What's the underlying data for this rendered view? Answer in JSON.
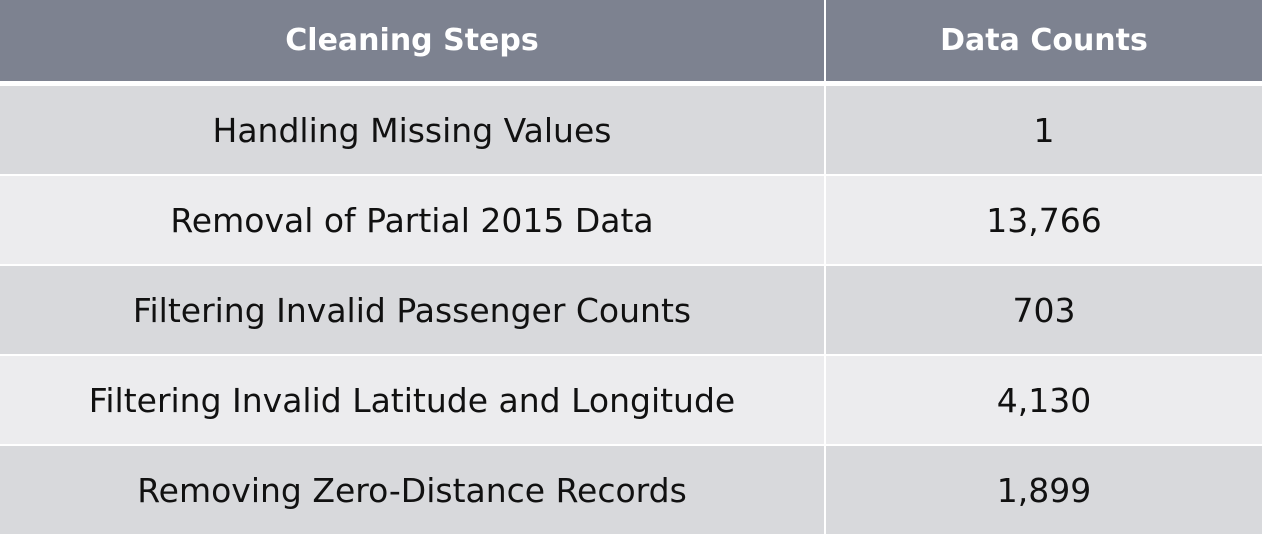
{
  "table": {
    "headers": {
      "step": "Cleaning Steps",
      "count": "Data Counts"
    },
    "rows": [
      {
        "step": "Handling Missing Values",
        "count": "1"
      },
      {
        "step": "Removal of Partial 2015 Data",
        "count": "13,766"
      },
      {
        "step": "Filtering Invalid Passenger Counts",
        "count": "703"
      },
      {
        "step": "Filtering Invalid Latitude and Longitude",
        "count": "4,130"
      },
      {
        "step": "Removing Zero-Distance Records",
        "count": "1,899"
      }
    ]
  },
  "colors": {
    "header_background": "#7d8290",
    "row_odd_background": "#d8d9dc",
    "row_even_background": "#ececee",
    "header_text": "#ffffff",
    "body_text": "#111111"
  }
}
